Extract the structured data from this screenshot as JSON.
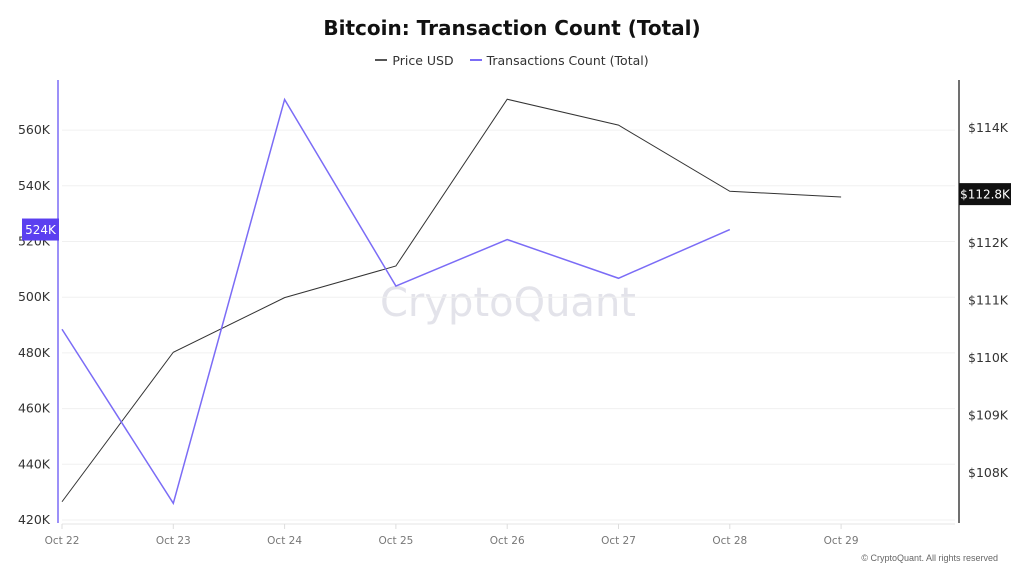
{
  "title": "Bitcoin: Transaction Count (Total)",
  "legend": [
    {
      "label": "Price USD",
      "color": "#333333"
    },
    {
      "label": "Transactions Count (Total)",
      "color": "#7b6cf6"
    }
  ],
  "watermark": "CryptoQuant",
  "copyright": "© CryptoQuant. All rights reserved",
  "left_axis_marker": "524K",
  "right_axis_marker": "$112.8K",
  "chart_data": {
    "type": "line",
    "title": "Bitcoin: Transaction Count (Total)",
    "xlabel": "",
    "categories": [
      "Oct 22",
      "Oct 23",
      "Oct 24",
      "Oct 25",
      "Oct 26",
      "Oct 27",
      "Oct 28",
      "Oct 29"
    ],
    "series": [
      {
        "name": "Price USD",
        "axis": "right",
        "color": "#333333",
        "values": [
          107.5,
          110.1,
          111.05,
          111.6,
          114.5,
          114.05,
          112.9,
          112.8
        ]
      },
      {
        "name": "Transactions Count (Total)",
        "axis": "left",
        "color": "#7b6cf6",
        "values": [
          488.5,
          426,
          571,
          504,
          520.7,
          506.8,
          524.3,
          null
        ]
      }
    ],
    "left_axis": {
      "label": "Transactions Count",
      "ticks": [
        "420K",
        "440K",
        "460K",
        "480K",
        "500K",
        "520K",
        "540K",
        "560K"
      ],
      "ylim": [
        420,
        575
      ],
      "unit": "K"
    },
    "right_axis": {
      "label": "Price USD",
      "ticks": [
        "$108K",
        "$109K",
        "$110K",
        "$111K",
        "$112K",
        "$114K"
      ],
      "ylim": [
        107.3,
        114.8
      ],
      "unit": "$K"
    },
    "current_values": {
      "transactions": "524K",
      "price": "$112.8K"
    },
    "grid": true,
    "legend_position": "top"
  }
}
